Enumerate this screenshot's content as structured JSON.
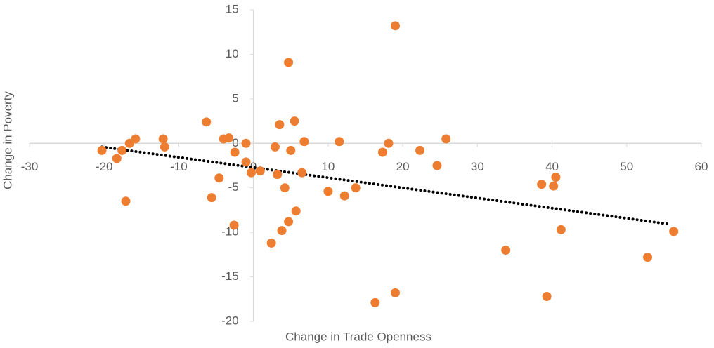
{
  "chart_data": {
    "type": "scatter",
    "x_label": "Change in Trade Openness",
    "y_label": "Change in Poverty",
    "x": [
      -20.3,
      -18.3,
      -17.6,
      -17.1,
      -16.6,
      -15.8,
      -12.1,
      -11.9,
      -6.3,
      -5.6,
      -4.6,
      -4.0,
      -3.3,
      -2.5,
      -2.6,
      -1.0,
      -1.0,
      -0.3,
      0.9,
      2.4,
      2.9,
      3.2,
      3.5,
      3.8,
      4.2,
      4.7,
      4.7,
      5.0,
      5.5,
      5.7,
      6.5,
      6.8,
      10.0,
      11.5,
      12.2,
      13.7,
      16.3,
      17.3,
      18.1,
      19.0,
      19.0,
      22.3,
      24.6,
      25.8,
      33.8,
      38.6,
      39.3,
      40.2,
      40.5,
      41.2,
      52.8,
      56.3
    ],
    "values": [
      -0.8,
      -1.7,
      -0.8,
      -6.5,
      0,
      0.5,
      0.5,
      -0.4,
      2.4,
      -6.1,
      -3.9,
      0.5,
      0.6,
      -1.0,
      -9.2,
      0,
      -2.1,
      -3.3,
      -3.1,
      -11.2,
      -0.4,
      -3.5,
      2.1,
      -9.8,
      -5.0,
      9.1,
      -8.8,
      -0.8,
      2.5,
      -7.6,
      -3.3,
      0.2,
      -5.4,
      0.2,
      -5.9,
      -5.0,
      -17.9,
      -1.0,
      0,
      13.2,
      -16.8,
      -0.8,
      -2.5,
      0.5,
      -12.0,
      -4.6,
      -17.2,
      -4.8,
      -3.8,
      -9.7,
      -12.8,
      -9.9
    ],
    "color": "#ed7d31",
    "trendline": {
      "x": [
        -20.3,
        55.9
      ],
      "y": [
        -0.4,
        -9.1
      ],
      "color": "#000000"
    },
    "xlim": [
      -30,
      60
    ],
    "xticks": [
      -30,
      -20,
      -10,
      0,
      10,
      20,
      30,
      40,
      50,
      60
    ],
    "ylim": [
      -20,
      15
    ],
    "yticks": [
      -20,
      -15,
      -10,
      -5,
      0,
      5,
      10,
      15
    ],
    "grid": false
  }
}
